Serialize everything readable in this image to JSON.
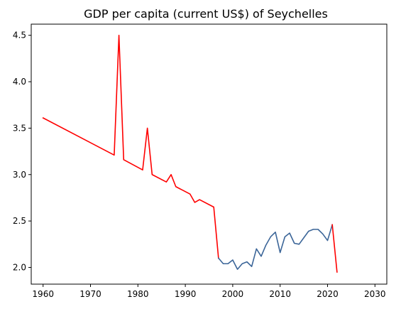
{
  "chart_data": {
    "type": "line",
    "title": "GDP per capita (current US$) of Seychelles",
    "xlabel": "",
    "ylabel": "",
    "xlim": [
      1957.5,
      2032.5
    ],
    "ylim": [
      1.82,
      4.62
    ],
    "x_ticks": [
      1960,
      1970,
      1980,
      1990,
      2000,
      2010,
      2020,
      2030
    ],
    "x_tick_labels": [
      "1960",
      "1970",
      "1980",
      "1990",
      "2000",
      "2010",
      "2020",
      "2030"
    ],
    "y_ticks": [
      2.0,
      2.5,
      3.0,
      3.5,
      4.0,
      4.5
    ],
    "y_tick_labels": [
      "2.0",
      "2.5",
      "3.0",
      "3.5",
      "4.0",
      "4.5"
    ],
    "grid": false,
    "legend": "none",
    "series": [
      {
        "color": "#ff0000",
        "x": [
          1960,
          1975,
          1976,
          1977,
          1981,
          1982,
          1983,
          1986,
          1987,
          1988,
          1991,
          1992,
          1993,
          1996,
          1997
        ],
        "values": [
          3.61,
          3.21,
          4.5,
          3.16,
          3.05,
          3.5,
          3.0,
          2.92,
          3.0,
          2.87,
          2.79,
          2.7,
          2.73,
          2.65,
          2.1
        ]
      },
      {
        "color": "#3b6598",
        "x": [
          1997,
          1998,
          1999,
          2000,
          2001,
          2002,
          2003,
          2004,
          2005,
          2006,
          2007,
          2008,
          2009,
          2010,
          2011,
          2012,
          2013,
          2014,
          2015,
          2016,
          2017,
          2018,
          2019,
          2020,
          2021
        ],
        "values": [
          2.1,
          2.04,
          2.04,
          2.08,
          1.98,
          2.04,
          2.06,
          2.01,
          2.2,
          2.12,
          2.24,
          2.33,
          2.38,
          2.16,
          2.33,
          2.37,
          2.26,
          2.25,
          2.32,
          2.39,
          2.41,
          2.41,
          2.36,
          2.29,
          2.46
        ]
      },
      {
        "color": "#ff0000",
        "x": [
          2021,
          2022
        ],
        "values": [
          2.46,
          1.95
        ]
      }
    ]
  }
}
